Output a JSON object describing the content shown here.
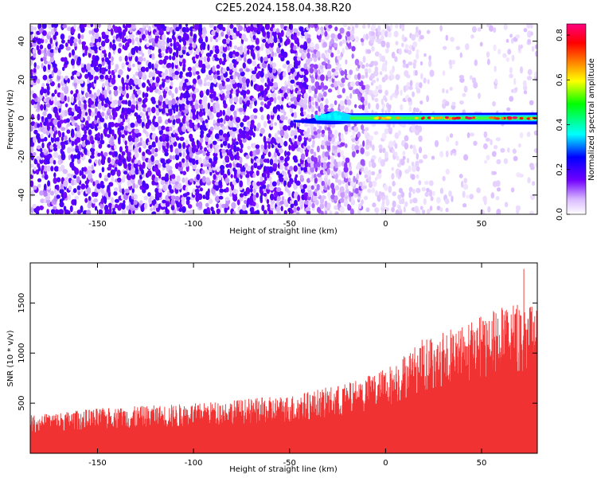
{
  "chart_data": [
    {
      "type": "heatmap",
      "title": "C2E5.2024.158.04.38.R20",
      "xlabel": "Height of straight line (km)",
      "ylabel": "Frequency (Hz)",
      "xlim": [
        -185,
        79
      ],
      "ylim": [
        -50,
        49
      ],
      "xticks": [
        -150,
        -100,
        -50,
        0,
        50
      ],
      "yticks": [
        -40,
        -20,
        0,
        20,
        40
      ],
      "colorbar": {
        "label": "Normalized spectral amplitude",
        "range": [
          0.0,
          0.85
        ],
        "ticks": [
          0.0,
          0.2,
          0.4,
          0.6,
          0.8
        ],
        "colormap": [
          "#ffffff",
          "#d8b8ff",
          "#7000ff",
          "#0000ff",
          "#00ffff",
          "#00ff00",
          "#ffff00",
          "#ff8000",
          "#ff0000",
          "#ff0080"
        ]
      },
      "features": {
        "noise_region_x": [
          -185,
          -40
        ],
        "noise_amplitude_approx": 0.2,
        "fading_region_x": [
          -40,
          79
        ],
        "signal_line": {
          "frequency_hz": 0,
          "x_start": -48,
          "x_end": 79,
          "peak_amplitude_approx": 0.8,
          "bump_near_x": -30,
          "bump_frequency_hz": 3
        }
      }
    },
    {
      "type": "area",
      "xlabel": "Height of straight line (km)",
      "ylabel": "SNR (10 * v/v)",
      "xlim": [
        -185,
        79
      ],
      "ylim": [
        0,
        1900
      ],
      "xticks": [
        -150,
        -100,
        -50,
        0,
        50
      ],
      "yticks": [
        500,
        1000,
        1500
      ],
      "color": "#f03232",
      "envelope": {
        "x": [
          -185,
          -150,
          -100,
          -50,
          -20,
          0,
          20,
          40,
          60,
          70,
          79
        ],
        "y_max": [
          380,
          450,
          500,
          580,
          700,
          850,
          1150,
          1300,
          1450,
          1500,
          1450
        ],
        "y_min": [
          40,
          40,
          40,
          40,
          40,
          40,
          40,
          40,
          40,
          40,
          40
        ]
      },
      "peak": {
        "x": 72,
        "y": 1840
      }
    }
  ],
  "colors": {
    "signal": "#f03232",
    "noise": "#7000ff"
  }
}
